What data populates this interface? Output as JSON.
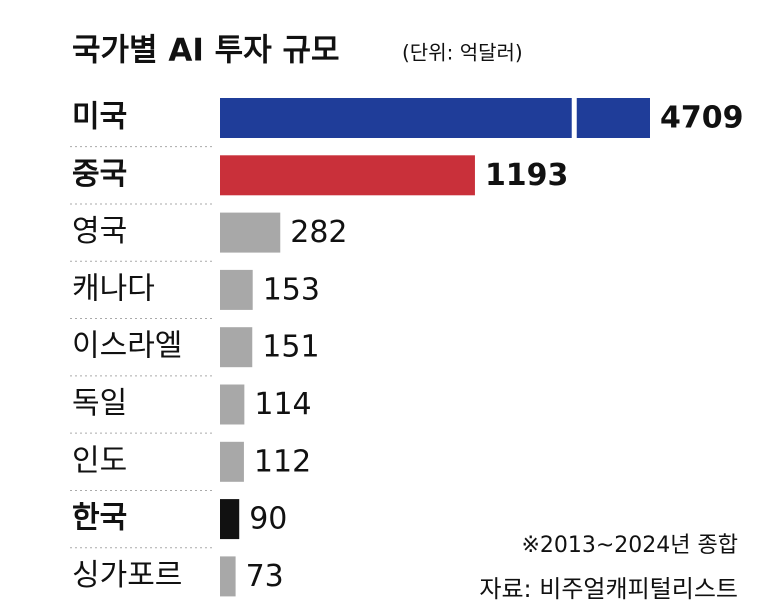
{
  "chart_data": {
    "type": "bar",
    "orientation": "horizontal",
    "title": "국가별 AI 투자 규모",
    "subtitle": "(단위: 억달러)",
    "categories": [
      "미국",
      "중국",
      "영국",
      "캐나다",
      "이스라엘",
      "독일",
      "인도",
      "한국",
      "싱가포르"
    ],
    "values": [
      4709,
      1193,
      282,
      153,
      151,
      114,
      112,
      90,
      73
    ],
    "colors": [
      "#1f3d99",
      "#c9303a",
      "#a8a8a8",
      "#a8a8a8",
      "#a8a8a8",
      "#a8a8a8",
      "#a8a8a8",
      "#111111",
      "#a8a8a8"
    ],
    "bold": [
      true,
      true,
      false,
      false,
      false,
      false,
      false,
      true,
      false
    ],
    "note": "※2013~2024년 종합",
    "source": "자료: 비주얼캐피털리스트"
  }
}
